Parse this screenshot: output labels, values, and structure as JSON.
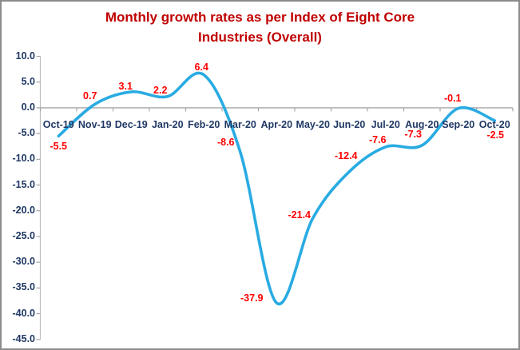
{
  "chart_data": {
    "type": "line",
    "title": "Monthly growth rates as per Index of Eight Core Industries (Overall)",
    "categories": [
      "Oct-19",
      "Nov-19",
      "Dec-19",
      "Jan-20",
      "Feb-20",
      "Mar-20",
      "Apr-20",
      "May-20",
      "Jun-20",
      "Jul-20",
      "Aug-20",
      "Sep-20",
      "Oct-20"
    ],
    "values": [
      -5.5,
      0.7,
      3.1,
      2.2,
      6.4,
      -8.6,
      -37.9,
      -21.4,
      -12.4,
      -7.6,
      -7.3,
      -0.1,
      -2.5
    ],
    "data_labels": [
      "-5.5",
      "0.7",
      "3.1",
      "2.2",
      "6.4",
      "-8.6",
      "-37.9",
      "-21.4",
      "-12.4",
      "-7.6",
      "-7.3",
      "-0.1",
      "-2.5"
    ],
    "xlabel": "",
    "ylabel": "",
    "ylim": [
      -45,
      10
    ],
    "ytick_step": 5,
    "ytick_labels": [
      "10.0",
      "5.0",
      "0.0",
      "-5.0",
      "-10.0",
      "-15.0",
      "-20.0",
      "-25.0",
      "-30.0",
      "-35.0",
      "-40.0",
      "-45.0"
    ],
    "smooth_line": true,
    "gridlines": "none",
    "legend": "none",
    "colors": {
      "line": "#29ABE2",
      "data_label": "#FF0000",
      "axis_text": "#1F3864",
      "title": "#C00000",
      "x_axis_line": "#A6A6A6",
      "y_axis_line": "#BFBFBF"
    }
  }
}
